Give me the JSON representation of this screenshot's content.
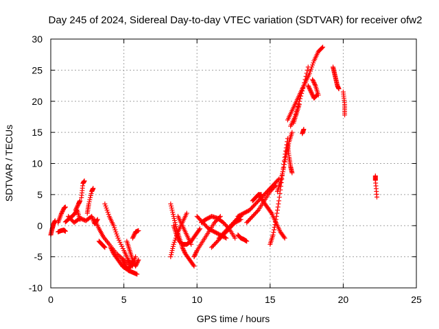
{
  "chart_data": {
    "type": "scatter",
    "title": "Day 245 of 2024, Sidereal Day-to-day VTEC variation (SDTVAR) for receiver ofw2",
    "xlabel": "GPS time / hours",
    "ylabel": "SDTVAR / TECUs",
    "xlim": [
      0,
      25
    ],
    "ylim": [
      -10,
      30
    ],
    "xticks": [
      0,
      5,
      10,
      15,
      20,
      25
    ],
    "yticks": [
      -10,
      -5,
      0,
      5,
      10,
      15,
      20,
      25,
      30
    ],
    "grid": true,
    "marker": "+",
    "color": "#ff0000",
    "series_tracks": [
      {
        "name": "t1",
        "x": [
          0.0,
          0.1,
          0.2,
          0.3
        ],
        "y": [
          -1.5,
          -0.5,
          0.3,
          0.8
        ]
      },
      {
        "name": "t2",
        "x": [
          0.5,
          0.7,
          0.9,
          1.0
        ],
        "y": [
          0.5,
          1.8,
          2.8,
          3.0
        ]
      },
      {
        "name": "t3",
        "x": [
          0.5,
          0.7,
          0.9,
          1.0
        ],
        "y": [
          -1.0,
          -0.8,
          -0.7,
          -0.9
        ]
      },
      {
        "name": "t4",
        "x": [
          1.0,
          1.3,
          1.6,
          1.8,
          2.0
        ],
        "y": [
          0.6,
          1.2,
          1.8,
          2.5,
          1.0
        ]
      },
      {
        "name": "t5",
        "x": [
          1.2,
          1.6,
          2.0,
          2.4,
          2.8,
          3.0,
          3.2
        ],
        "y": [
          1.5,
          0.5,
          1.2,
          0.8,
          1.5,
          0.3,
          1.0
        ]
      },
      {
        "name": "t6",
        "x": [
          2.1,
          2.2,
          2.3
        ],
        "y": [
          4.5,
          6.8,
          7.2
        ]
      },
      {
        "name": "t7",
        "x": [
          2.5,
          2.6,
          2.8,
          2.9
        ],
        "y": [
          2.0,
          3.5,
          5.5,
          6.0
        ]
      },
      {
        "name": "t8",
        "x": [
          1.7,
          1.9,
          2.0
        ],
        "y": [
          2.5,
          3.5,
          4.0
        ]
      },
      {
        "name": "t9",
        "x": [
          3.0,
          3.3,
          3.6,
          4.0,
          4.5,
          5.0,
          5.5
        ],
        "y": [
          1.0,
          -0.5,
          -1.8,
          -3.0,
          -4.5,
          -5.5,
          -6.5
        ]
      },
      {
        "name": "t10",
        "x": [
          3.3,
          3.5,
          3.7
        ],
        "y": [
          -2.5,
          -3.0,
          -3.5
        ]
      },
      {
        "name": "t11",
        "x": [
          3.7,
          4.0,
          4.3,
          4.6,
          5.0,
          5.3,
          5.6
        ],
        "y": [
          3.5,
          1.5,
          0.0,
          -2.0,
          -4.0,
          -5.5,
          -6.5
        ]
      },
      {
        "name": "t12",
        "x": [
          4.1,
          4.3,
          4.6,
          4.9,
          5.2,
          5.5,
          5.8
        ],
        "y": [
          -3.5,
          -4.5,
          -5.5,
          -6.5,
          -7.0,
          -6.5,
          -5.0
        ]
      },
      {
        "name": "t13",
        "x": [
          4.9,
          5.1,
          5.3,
          5.6,
          5.9
        ],
        "y": [
          -5.5,
          -6.5,
          -7.2,
          -7.5,
          -7.8
        ]
      },
      {
        "name": "t14",
        "x": [
          5.2,
          5.4,
          5.6,
          5.8,
          6.0
        ],
        "y": [
          -2.5,
          -4.0,
          -5.5,
          -6.5,
          -5.5
        ]
      },
      {
        "name": "t15",
        "x": [
          5.6,
          5.8,
          6.0
        ],
        "y": [
          -2.0,
          -1.0,
          -0.8
        ]
      },
      {
        "name": "t16",
        "x": [
          8.2,
          8.4,
          8.6,
          8.8,
          9.0,
          9.2,
          9.5,
          9.8
        ],
        "y": [
          3.5,
          1.5,
          -0.5,
          -2.0,
          -3.5,
          -4.5,
          -5.5,
          -6.5
        ]
      },
      {
        "name": "t17",
        "x": [
          8.4,
          8.6,
          8.8,
          9.0,
          9.3,
          9.6,
          9.9,
          10.2
        ],
        "y": [
          0.0,
          -1.5,
          -2.5,
          -3.0,
          -3.0,
          -2.5,
          -1.5,
          -0.5
        ]
      },
      {
        "name": "t18",
        "x": [
          8.2,
          8.4,
          8.7,
          9.0,
          9.3
        ],
        "y": [
          -5.0,
          -3.0,
          -1.0,
          0.5,
          2.0
        ]
      },
      {
        "name": "t19",
        "x": [
          8.7,
          9.0,
          9.3,
          9.6
        ],
        "y": [
          1.5,
          0.0,
          -1.5,
          -3.0
        ]
      },
      {
        "name": "t20",
        "x": [
          9.8,
          10.0,
          10.4,
          10.8,
          11.2,
          11.6
        ],
        "y": [
          -5.0,
          -4.0,
          -2.5,
          -1.0,
          0.5,
          1.5
        ]
      },
      {
        "name": "t21",
        "x": [
          10.0,
          10.4,
          10.8,
          11.2,
          11.6,
          12.0
        ],
        "y": [
          1.5,
          0.5,
          -0.5,
          -1.0,
          -1.5,
          -2.0
        ]
      },
      {
        "name": "t22",
        "x": [
          10.3,
          10.6,
          11.0,
          11.4,
          11.8,
          12.2,
          12.6
        ],
        "y": [
          0.5,
          1.0,
          1.5,
          1.2,
          0.5,
          -0.5,
          -2.0
        ]
      },
      {
        "name": "t23",
        "x": [
          11.0,
          11.4,
          11.8,
          12.2,
          12.6,
          13.0
        ],
        "y": [
          -3.5,
          -2.5,
          -1.5,
          -0.5,
          0.5,
          1.0
        ]
      },
      {
        "name": "t24",
        "x": [
          11.5,
          11.9,
          12.3,
          12.7,
          13.0
        ],
        "y": [
          -2.0,
          -1.0,
          0.0,
          1.0,
          1.5
        ]
      },
      {
        "name": "t25",
        "x": [
          12.8,
          13.0,
          13.2,
          13.4
        ],
        "y": [
          -1.5,
          -2.0,
          -2.2,
          -2.5
        ]
      },
      {
        "name": "t26",
        "x": [
          12.8,
          13.2,
          13.6,
          14.0,
          14.4,
          14.8,
          15.2,
          15.6
        ],
        "y": [
          1.5,
          2.0,
          2.5,
          3.5,
          4.5,
          5.5,
          6.5,
          7.5
        ]
      },
      {
        "name": "t27",
        "x": [
          13.4,
          13.8,
          14.2,
          14.6,
          15.0,
          15.4
        ],
        "y": [
          0.5,
          1.5,
          2.5,
          4.0,
          5.5,
          6.5
        ]
      },
      {
        "name": "t28",
        "x": [
          13.8,
          14.0,
          14.2,
          14.4
        ],
        "y": [
          4.0,
          4.5,
          5.0,
          5.0
        ]
      },
      {
        "name": "t29",
        "x": [
          14.2,
          14.5,
          14.8,
          15.1,
          15.4,
          15.7,
          16.0
        ],
        "y": [
          5.0,
          4.0,
          3.0,
          2.0,
          0.5,
          -1.0,
          -2.0
        ]
      },
      {
        "name": "t30",
        "x": [
          15.0,
          15.2,
          15.4,
          15.6,
          15.8,
          16.0,
          16.2
        ],
        "y": [
          -3.0,
          -1.5,
          1.0,
          4.0,
          7.5,
          11.0,
          14.0
        ]
      },
      {
        "name": "t31",
        "x": [
          15.5,
          15.7,
          15.9,
          16.1,
          16.3,
          16.5
        ],
        "y": [
          5.5,
          7.0,
          9.0,
          11.5,
          13.5,
          15.0
        ]
      },
      {
        "name": "t32",
        "x": [
          16.2,
          16.3,
          16.4,
          16.5
        ],
        "y": [
          13.0,
          11.0,
          9.5,
          8.5
        ]
      },
      {
        "name": "t33",
        "x": [
          16.2,
          16.5,
          16.8,
          17.1,
          17.4,
          17.7,
          18.0,
          18.3,
          18.6
        ],
        "y": [
          17.0,
          18.5,
          20.0,
          21.5,
          23.0,
          24.5,
          26.5,
          28.0,
          28.7
        ]
      },
      {
        "name": "t34",
        "x": [
          16.4,
          16.7,
          17.0,
          17.3,
          17.6
        ],
        "y": [
          16.0,
          17.5,
          20.0,
          22.5,
          25.5
        ]
      },
      {
        "name": "t35",
        "x": [
          17.6,
          17.8,
          18.0,
          18.2
        ],
        "y": [
          22.5,
          21.5,
          20.5,
          21.0
        ]
      },
      {
        "name": "t36",
        "x": [
          17.9,
          18.1,
          18.3
        ],
        "y": [
          23.5,
          22.5,
          21.0
        ]
      },
      {
        "name": "t37",
        "x": [
          17.2,
          17.3
        ],
        "y": [
          14.8,
          15.5
        ]
      },
      {
        "name": "t38",
        "x": [
          16.6,
          16.8,
          17.0
        ],
        "y": [
          16.5,
          18.0,
          19.5
        ]
      },
      {
        "name": "t39",
        "x": [
          19.3,
          19.4,
          19.5,
          19.6,
          19.7
        ],
        "y": [
          25.5,
          24.5,
          23.5,
          22.5,
          22.0
        ]
      },
      {
        "name": "t40",
        "x": [
          20.0,
          20.1,
          20.1
        ],
        "y": [
          21.5,
          19.5,
          17.8
        ]
      },
      {
        "name": "t41",
        "x": [
          22.2,
          22.2,
          22.3
        ],
        "y": [
          8.0,
          7.3,
          4.6
        ]
      }
    ]
  }
}
